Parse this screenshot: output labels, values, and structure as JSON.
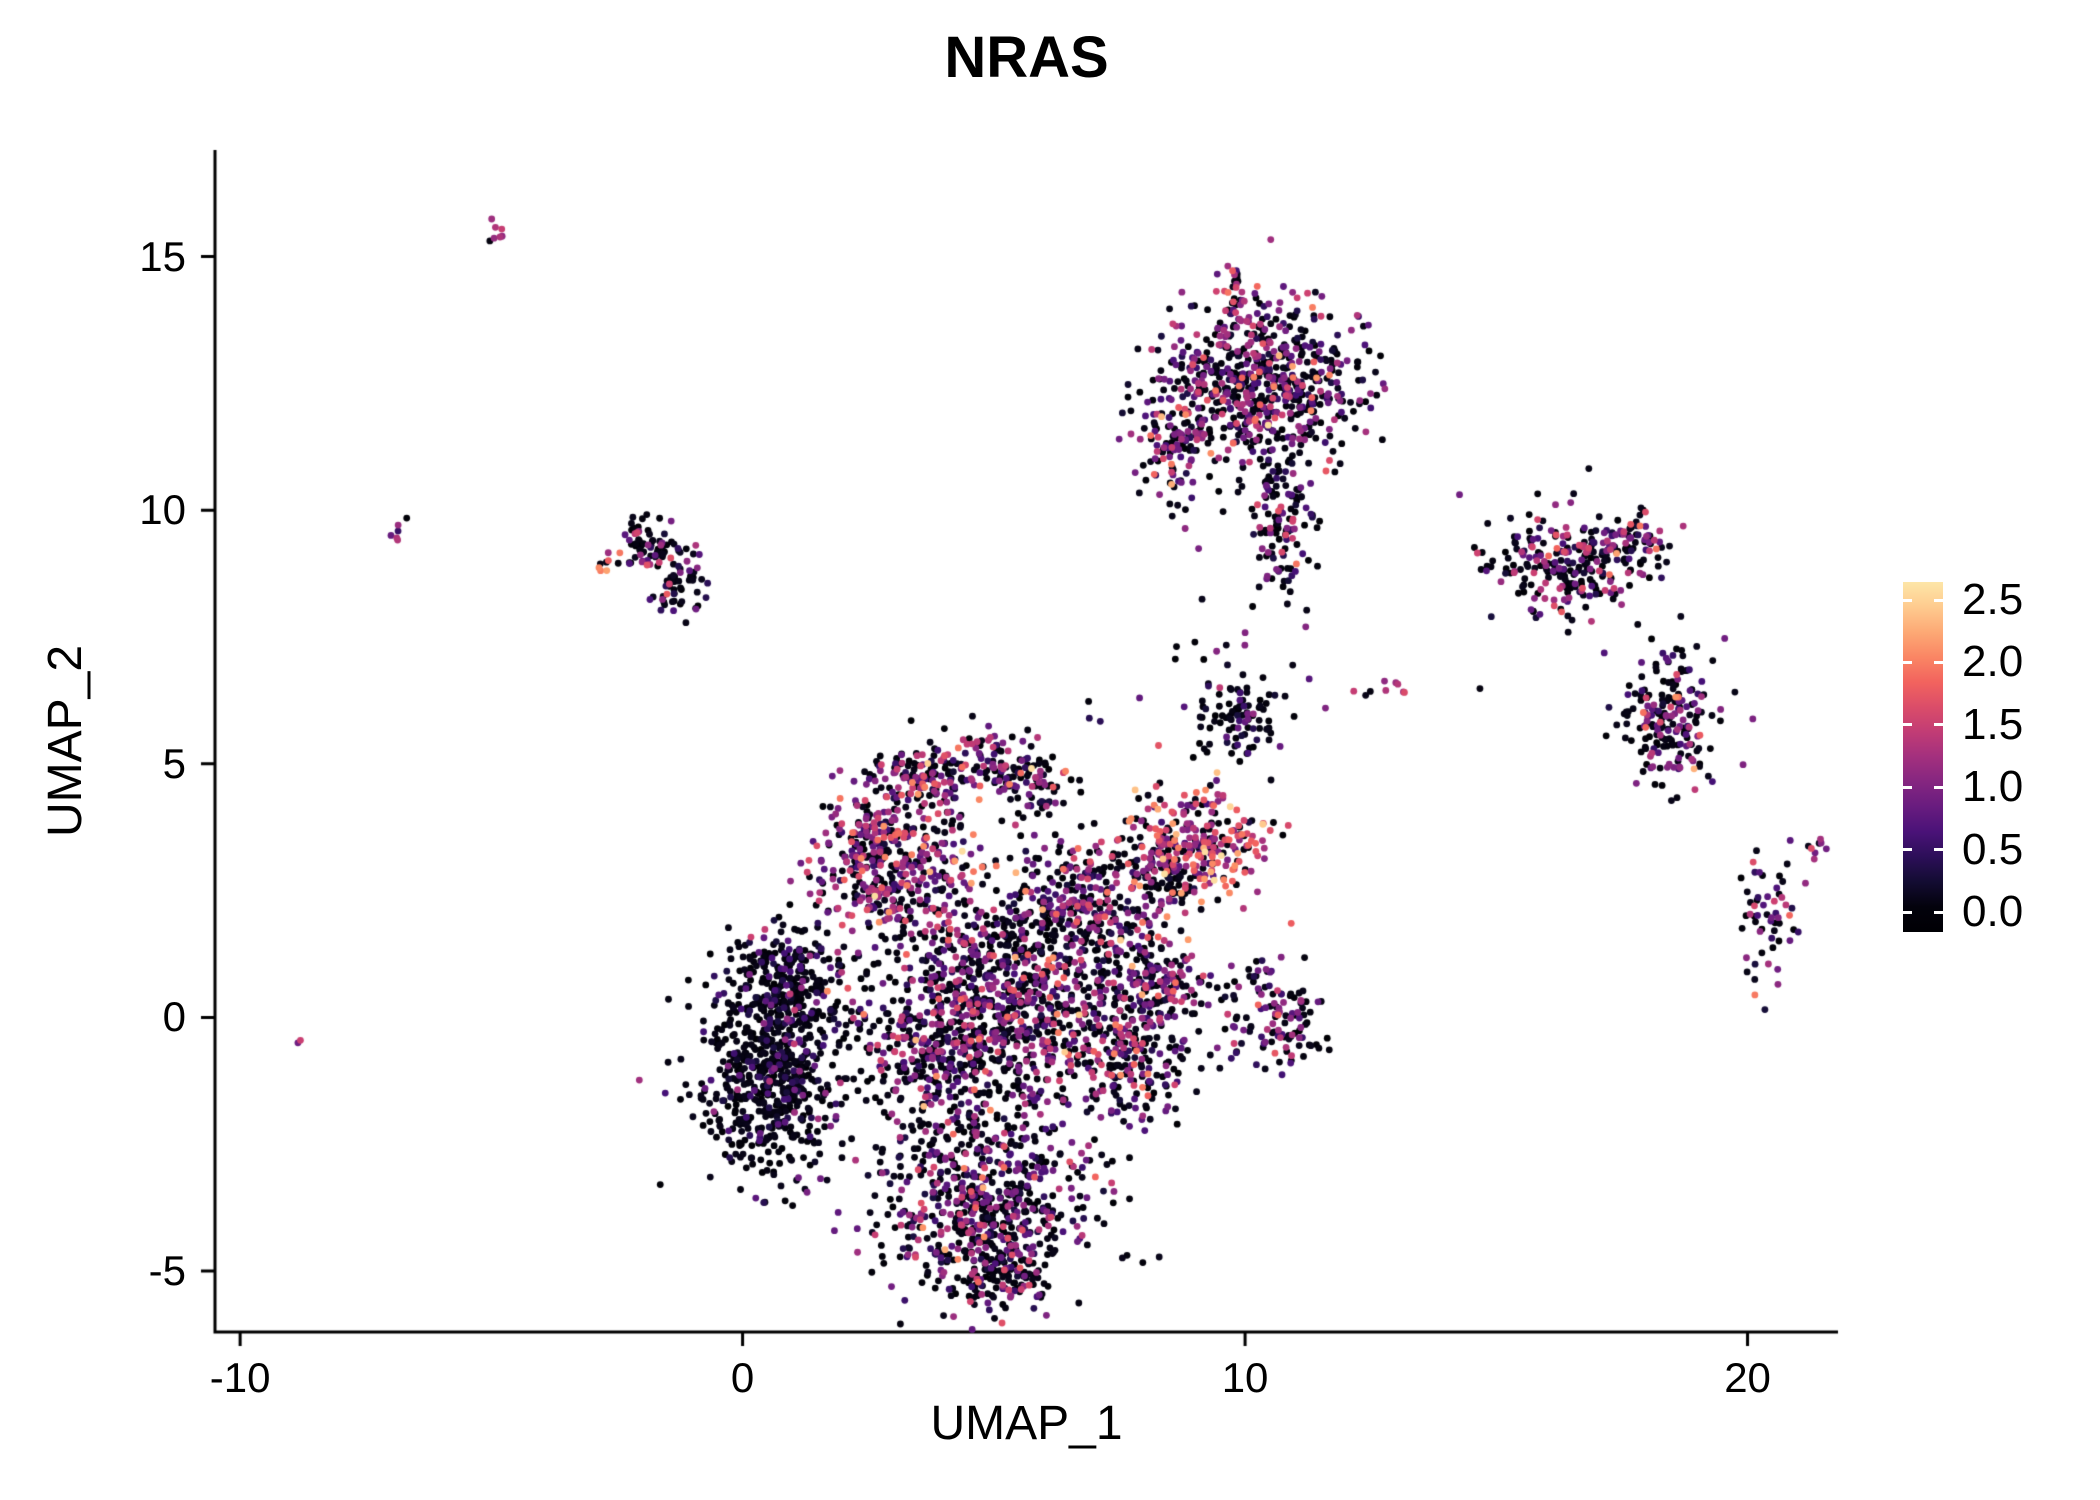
{
  "chart_data": {
    "type": "scatter",
    "title": "NRAS",
    "xlabel": "UMAP_1",
    "ylabel": "UMAP_2",
    "xlim": [
      -10.5,
      21.8
    ],
    "ylim": [
      -6.2,
      17.1
    ],
    "grid": false,
    "legend_position": "right",
    "xticks": [
      {
        "label": "-10",
        "value": -10
      },
      {
        "label": "0",
        "value": 0
      },
      {
        "label": "10",
        "value": 10
      },
      {
        "label": "20",
        "value": 20
      }
    ],
    "yticks": [
      {
        "label": "-5",
        "value": -5
      },
      {
        "label": "0",
        "value": 0
      },
      {
        "label": "5",
        "value": 5
      },
      {
        "label": "10",
        "value": 10
      },
      {
        "label": "15",
        "value": 15
      }
    ],
    "colorbar": {
      "ticks": [
        {
          "label": "0.0",
          "value": 0.0
        },
        {
          "label": "0.5",
          "value": 0.5
        },
        {
          "label": "1.0",
          "value": 1.0
        },
        {
          "label": "1.5",
          "value": 1.5
        },
        {
          "label": "2.0",
          "value": 2.0
        },
        {
          "label": "2.5",
          "value": 2.5
        }
      ],
      "vmin": 0.0,
      "vmax": 2.5,
      "colormap": "magma",
      "palette": [
        "#000004",
        "#180f3e",
        "#451077",
        "#721f81",
        "#9f2f7f",
        "#cd4071",
        "#f1605d",
        "#fd9567",
        "#fec98d",
        "#fcfdbf"
      ]
    },
    "style": {
      "point_radius": 3.4,
      "axis_color": "#000000",
      "background": "#ffffff",
      "expr_max": 2.6,
      "colormap_top": 0.95
    },
    "seed": 42,
    "clusters": [
      {
        "name": "speck-top-left",
        "cx": -4.85,
        "cy": 15.4,
        "sx": 0.1,
        "sy": 0.14,
        "n": 7,
        "p0": 0.15,
        "mu": 1.2,
        "sigma": 0.3
      },
      {
        "name": "speck-left",
        "cx": -6.85,
        "cy": 9.65,
        "sx": 0.08,
        "sy": 0.16,
        "n": 6,
        "p0": 0.3,
        "mu": 1.0,
        "sigma": 0.4
      },
      {
        "name": "small-left-a",
        "cx": -1.9,
        "cy": 9.3,
        "sx": 0.33,
        "sy": 0.28,
        "n": 70,
        "p0": 0.55,
        "mu": 0.9,
        "sigma": 0.5
      },
      {
        "name": "small-left-b",
        "cx": -1.25,
        "cy": 8.5,
        "sx": 0.28,
        "sy": 0.28,
        "n": 55,
        "p0": 0.55,
        "mu": 0.9,
        "sigma": 0.5
      },
      {
        "name": "small-left-orange",
        "cx": -2.7,
        "cy": 8.9,
        "sx": 0.12,
        "sy": 0.1,
        "n": 6,
        "p0": 0.1,
        "mu": 1.9,
        "sigma": 0.3
      },
      {
        "name": "top-main",
        "cx": 10.3,
        "cy": 12.5,
        "sx": 1.0,
        "sy": 0.82,
        "n": 650,
        "p0": 0.48,
        "mu": 0.95,
        "sigma": 0.5
      },
      {
        "name": "top-left-arm",
        "cx": 8.65,
        "cy": 11.35,
        "sx": 0.42,
        "sy": 0.6,
        "n": 120,
        "p0": 0.45,
        "mu": 1.0,
        "sigma": 0.5
      },
      {
        "name": "top-tail",
        "cx": 10.8,
        "cy": 9.7,
        "sx": 0.34,
        "sy": 0.8,
        "n": 130,
        "p0": 0.5,
        "mu": 0.9,
        "sigma": 0.5
      },
      {
        "name": "top-spike",
        "cx": 9.85,
        "cy": 14.25,
        "sx": 0.12,
        "sy": 0.3,
        "n": 25,
        "p0": 0.25,
        "mu": 1.3,
        "sigma": 0.4
      },
      {
        "name": "right-upper",
        "cx": 16.3,
        "cy": 8.9,
        "sx": 0.7,
        "sy": 0.5,
        "n": 220,
        "p0": 0.5,
        "mu": 0.9,
        "sigma": 0.5
      },
      {
        "name": "right-upper-ext",
        "cx": 17.6,
        "cy": 9.3,
        "sx": 0.45,
        "sy": 0.3,
        "n": 80,
        "p0": 0.45,
        "mu": 1.0,
        "sigma": 0.5
      },
      {
        "name": "right-lower",
        "cx": 18.4,
        "cy": 5.9,
        "sx": 0.48,
        "sy": 0.66,
        "n": 200,
        "p0": 0.5,
        "mu": 0.9,
        "sigma": 0.5
      },
      {
        "name": "far-right-y",
        "cx": 20.4,
        "cy": 2.1,
        "sx": 0.3,
        "sy": 0.62,
        "n": 55,
        "p0": 0.5,
        "mu": 0.9,
        "sigma": 0.5
      },
      {
        "name": "far-right-dash",
        "cx": 21.45,
        "cy": 3.35,
        "sx": 0.13,
        "sy": 0.1,
        "n": 8,
        "p0": 0.2,
        "mu": 1.2,
        "sigma": 0.3
      },
      {
        "name": "mid-small-dark",
        "cx": 9.9,
        "cy": 5.95,
        "sx": 0.45,
        "sy": 0.42,
        "n": 90,
        "p0": 0.72,
        "mu": 0.6,
        "sigma": 0.35
      },
      {
        "name": "orange-cluster",
        "cx": 9.0,
        "cy": 3.45,
        "sx": 0.72,
        "sy": 0.62,
        "n": 290,
        "p0": 0.3,
        "mu": 1.45,
        "sigma": 0.55
      },
      {
        "name": "orange-cluster-dark-edge",
        "cx": 8.2,
        "cy": 2.75,
        "sx": 0.4,
        "sy": 0.4,
        "n": 80,
        "p0": 0.6,
        "mu": 0.8,
        "sigma": 0.4
      },
      {
        "name": "main-left-dark",
        "cx": 0.6,
        "cy": -0.9,
        "sx": 0.72,
        "sy": 1.1,
        "n": 680,
        "p0": 0.78,
        "mu": 0.5,
        "sigma": 0.35
      },
      {
        "name": "main-left-upper",
        "cx": 0.95,
        "cy": 0.75,
        "sx": 0.5,
        "sy": 0.5,
        "n": 150,
        "p0": 0.75,
        "mu": 0.6,
        "sigma": 0.4
      },
      {
        "name": "main-upper-lobe",
        "cx": 2.9,
        "cy": 3.1,
        "sx": 0.68,
        "sy": 0.78,
        "n": 430,
        "p0": 0.38,
        "mu": 1.1,
        "sigma": 0.5
      },
      {
        "name": "main-upper-top",
        "cx": 3.6,
        "cy": 4.75,
        "sx": 0.5,
        "sy": 0.35,
        "n": 120,
        "p0": 0.4,
        "mu": 1.0,
        "sigma": 0.5
      },
      {
        "name": "main-top-bump-a",
        "cx": 5.0,
        "cy": 5.0,
        "sx": 0.45,
        "sy": 0.3,
        "n": 80,
        "p0": 0.5,
        "mu": 0.9,
        "sigma": 0.5
      },
      {
        "name": "main-top-bump-b",
        "cx": 5.8,
        "cy": 4.6,
        "sx": 0.4,
        "sy": 0.35,
        "n": 70,
        "p0": 0.5,
        "mu": 0.9,
        "sigma": 0.5
      },
      {
        "name": "main-core",
        "cx": 5.3,
        "cy": 0.7,
        "sx": 1.25,
        "sy": 1.3,
        "n": 850,
        "p0": 0.5,
        "mu": 0.9,
        "sigma": 0.5
      },
      {
        "name": "main-mid",
        "cx": 4.0,
        "cy": -0.6,
        "sx": 0.9,
        "sy": 0.9,
        "n": 380,
        "p0": 0.55,
        "mu": 0.85,
        "sigma": 0.45
      },
      {
        "name": "main-bottom",
        "cx": 4.8,
        "cy": -3.7,
        "sx": 1.05,
        "sy": 0.85,
        "n": 600,
        "p0": 0.5,
        "mu": 0.9,
        "sigma": 0.5
      },
      {
        "name": "main-bottom-tip",
        "cx": 5.0,
        "cy": -5.1,
        "sx": 0.55,
        "sy": 0.4,
        "n": 110,
        "p0": 0.5,
        "mu": 0.9,
        "sigma": 0.45
      },
      {
        "name": "main-right-ext",
        "cx": 7.6,
        "cy": -0.6,
        "sx": 0.68,
        "sy": 0.9,
        "n": 270,
        "p0": 0.45,
        "mu": 1.0,
        "sigma": 0.5
      },
      {
        "name": "main-right-upper",
        "cx": 8.3,
        "cy": 0.6,
        "sx": 0.5,
        "sy": 0.4,
        "n": 110,
        "p0": 0.5,
        "mu": 0.95,
        "sigma": 0.5
      },
      {
        "name": "main-neck",
        "cx": 6.8,
        "cy": 2.4,
        "sx": 0.5,
        "sy": 0.6,
        "n": 140,
        "p0": 0.5,
        "mu": 0.95,
        "sigma": 0.5
      },
      {
        "name": "main-bridge",
        "cx": 7.8,
        "cy": 1.7,
        "sx": 0.3,
        "sy": 0.4,
        "n": 45,
        "p0": 0.5,
        "mu": 0.9,
        "sigma": 0.5
      },
      {
        "name": "right-appendage-a",
        "cx": 10.4,
        "cy": 0.2,
        "sx": 0.45,
        "sy": 0.5,
        "n": 85,
        "p0": 0.5,
        "mu": 0.9,
        "sigma": 0.5
      },
      {
        "name": "right-appendage-b",
        "cx": 11.05,
        "cy": -0.35,
        "sx": 0.3,
        "sy": 0.4,
        "n": 40,
        "p0": 0.5,
        "mu": 0.9,
        "sigma": 0.5
      },
      {
        "name": "sparse-mid",
        "cx": 10.5,
        "cy": 7.0,
        "sx": 1.6,
        "sy": 0.8,
        "n": 18,
        "p0": 0.6,
        "mu": 0.8,
        "sigma": 0.5
      },
      {
        "name": "mid-dash",
        "cx": 12.75,
        "cy": 6.5,
        "sx": 0.3,
        "sy": 0.1,
        "n": 7,
        "p0": 0.3,
        "mu": 1.1,
        "sigma": 0.4
      }
    ],
    "singles": [
      {
        "x": -8.8,
        "y": -0.45,
        "e": 1.5
      },
      {
        "x": -8.85,
        "y": -0.5,
        "e": 0.9
      },
      {
        "x": 14.9,
        "y": 7.9,
        "e": 0.3
      },
      {
        "x": 13.0,
        "y": 6.6,
        "e": 1.2
      },
      {
        "x": 12.4,
        "y": 6.35,
        "e": 0.1
      },
      {
        "x": 7.9,
        "y": 6.3,
        "e": 0.8
      },
      {
        "x": 6.9,
        "y": 5.9,
        "e": 0.4
      },
      {
        "x": 9.65,
        "y": 6.95,
        "e": 0.2
      },
      {
        "x": 11.6,
        "y": 6.1,
        "e": 1.0
      },
      {
        "x": 19.3,
        "y": 4.65,
        "e": 0.6
      },
      {
        "x": 20.15,
        "y": 1.05,
        "e": 0.3
      },
      {
        "x": 20.6,
        "y": 0.95,
        "e": 0.9
      }
    ]
  }
}
